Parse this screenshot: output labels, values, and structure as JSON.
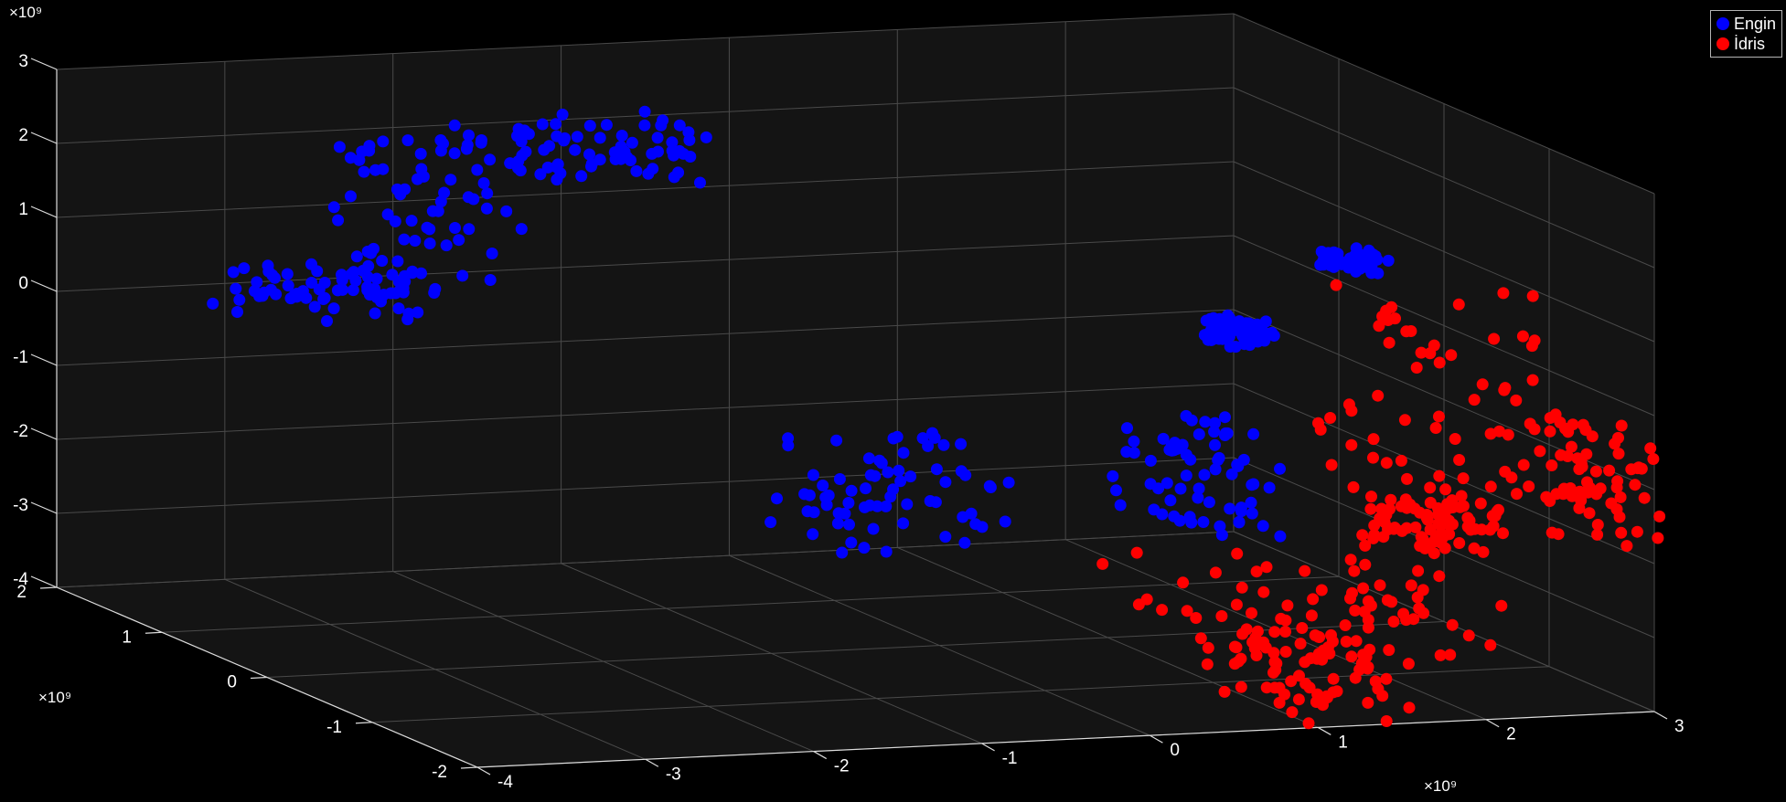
{
  "chart_data": {
    "type": "scatter",
    "dimensions": 3,
    "background_color": "#000000",
    "axes_color": "#141414",
    "grid": true,
    "legend_position": "top-right",
    "x_axis": {
      "range": [
        -4,
        3
      ],
      "ticks": [
        "-4",
        "-3",
        "-2",
        "-1",
        "0",
        "1",
        "2",
        "3"
      ],
      "multiplier": "×10⁹"
    },
    "y_axis": {
      "range": [
        -2,
        2
      ],
      "ticks": [
        "-2",
        "-1",
        "0",
        "1",
        "2"
      ],
      "multiplier": "×10⁹"
    },
    "z_axis": {
      "range": [
        -4,
        3
      ],
      "ticks": [
        "-4",
        "-3",
        "-2",
        "-1",
        "0",
        "1",
        "2",
        "3"
      ],
      "multiplier": "×10⁹"
    },
    "series": [
      {
        "name": "Engin",
        "color": "#0000ff",
        "clusters": [
          {
            "x": [
              -3.2,
              -2.0
            ],
            "y": [
              1.4,
              2.0
            ],
            "z": [
              -0.3,
              0.4
            ]
          },
          {
            "x": [
              -2.6,
              -1.7
            ],
            "y": [
              1.2,
              1.9
            ],
            "z": [
              0.2,
              2.3
            ]
          },
          {
            "x": [
              -1.9,
              -0.8
            ],
            "y": [
              0.8,
              1.4
            ],
            "z": [
              1.8,
              2.5
            ]
          },
          {
            "x": [
              -1.2,
              -0.1
            ],
            "y": [
              -1.0,
              -0.1
            ],
            "z": [
              -2.1,
              -0.8
            ]
          },
          {
            "x": [
              0.5,
              1.2
            ],
            "y": [
              -1.5,
              -0.7
            ],
            "z": [
              -1.8,
              -0.4
            ]
          },
          {
            "x": [
              0.9,
              1.2
            ],
            "y": [
              -1.3,
              -1.0
            ],
            "z": [
              0.7,
              1.0
            ]
          },
          {
            "x": [
              1.4,
              1.7
            ],
            "y": [
              -1.6,
              -1.3
            ],
            "z": [
              1.8,
              2.0
            ]
          }
        ]
      },
      {
        "name": "İdris",
        "color": "#ff0000",
        "clusters": [
          {
            "x": [
              1.5,
              2.6
            ],
            "y": [
              -1.9,
              -1.0
            ],
            "z": [
              -1.6,
              1.5
            ]
          },
          {
            "x": [
              2.6,
              3.1
            ],
            "y": [
              -2.0,
              -1.2
            ],
            "z": [
              -1.8,
              -0.3
            ]
          },
          {
            "x": [
              0.4,
              2.3
            ],
            "y": [
              -2.0,
              -0.8
            ],
            "z": [
              -3.3,
              -2.2
            ]
          },
          {
            "x": [
              0.8,
              1.6
            ],
            "y": [
              -2.0,
              -1.3
            ],
            "z": [
              -4.0,
              -3.0
            ]
          },
          {
            "x": [
              1.6,
              2.2
            ],
            "y": [
              -1.9,
              -1.4
            ],
            "z": [
              -1.9,
              -1.3
            ]
          }
        ]
      }
    ]
  }
}
